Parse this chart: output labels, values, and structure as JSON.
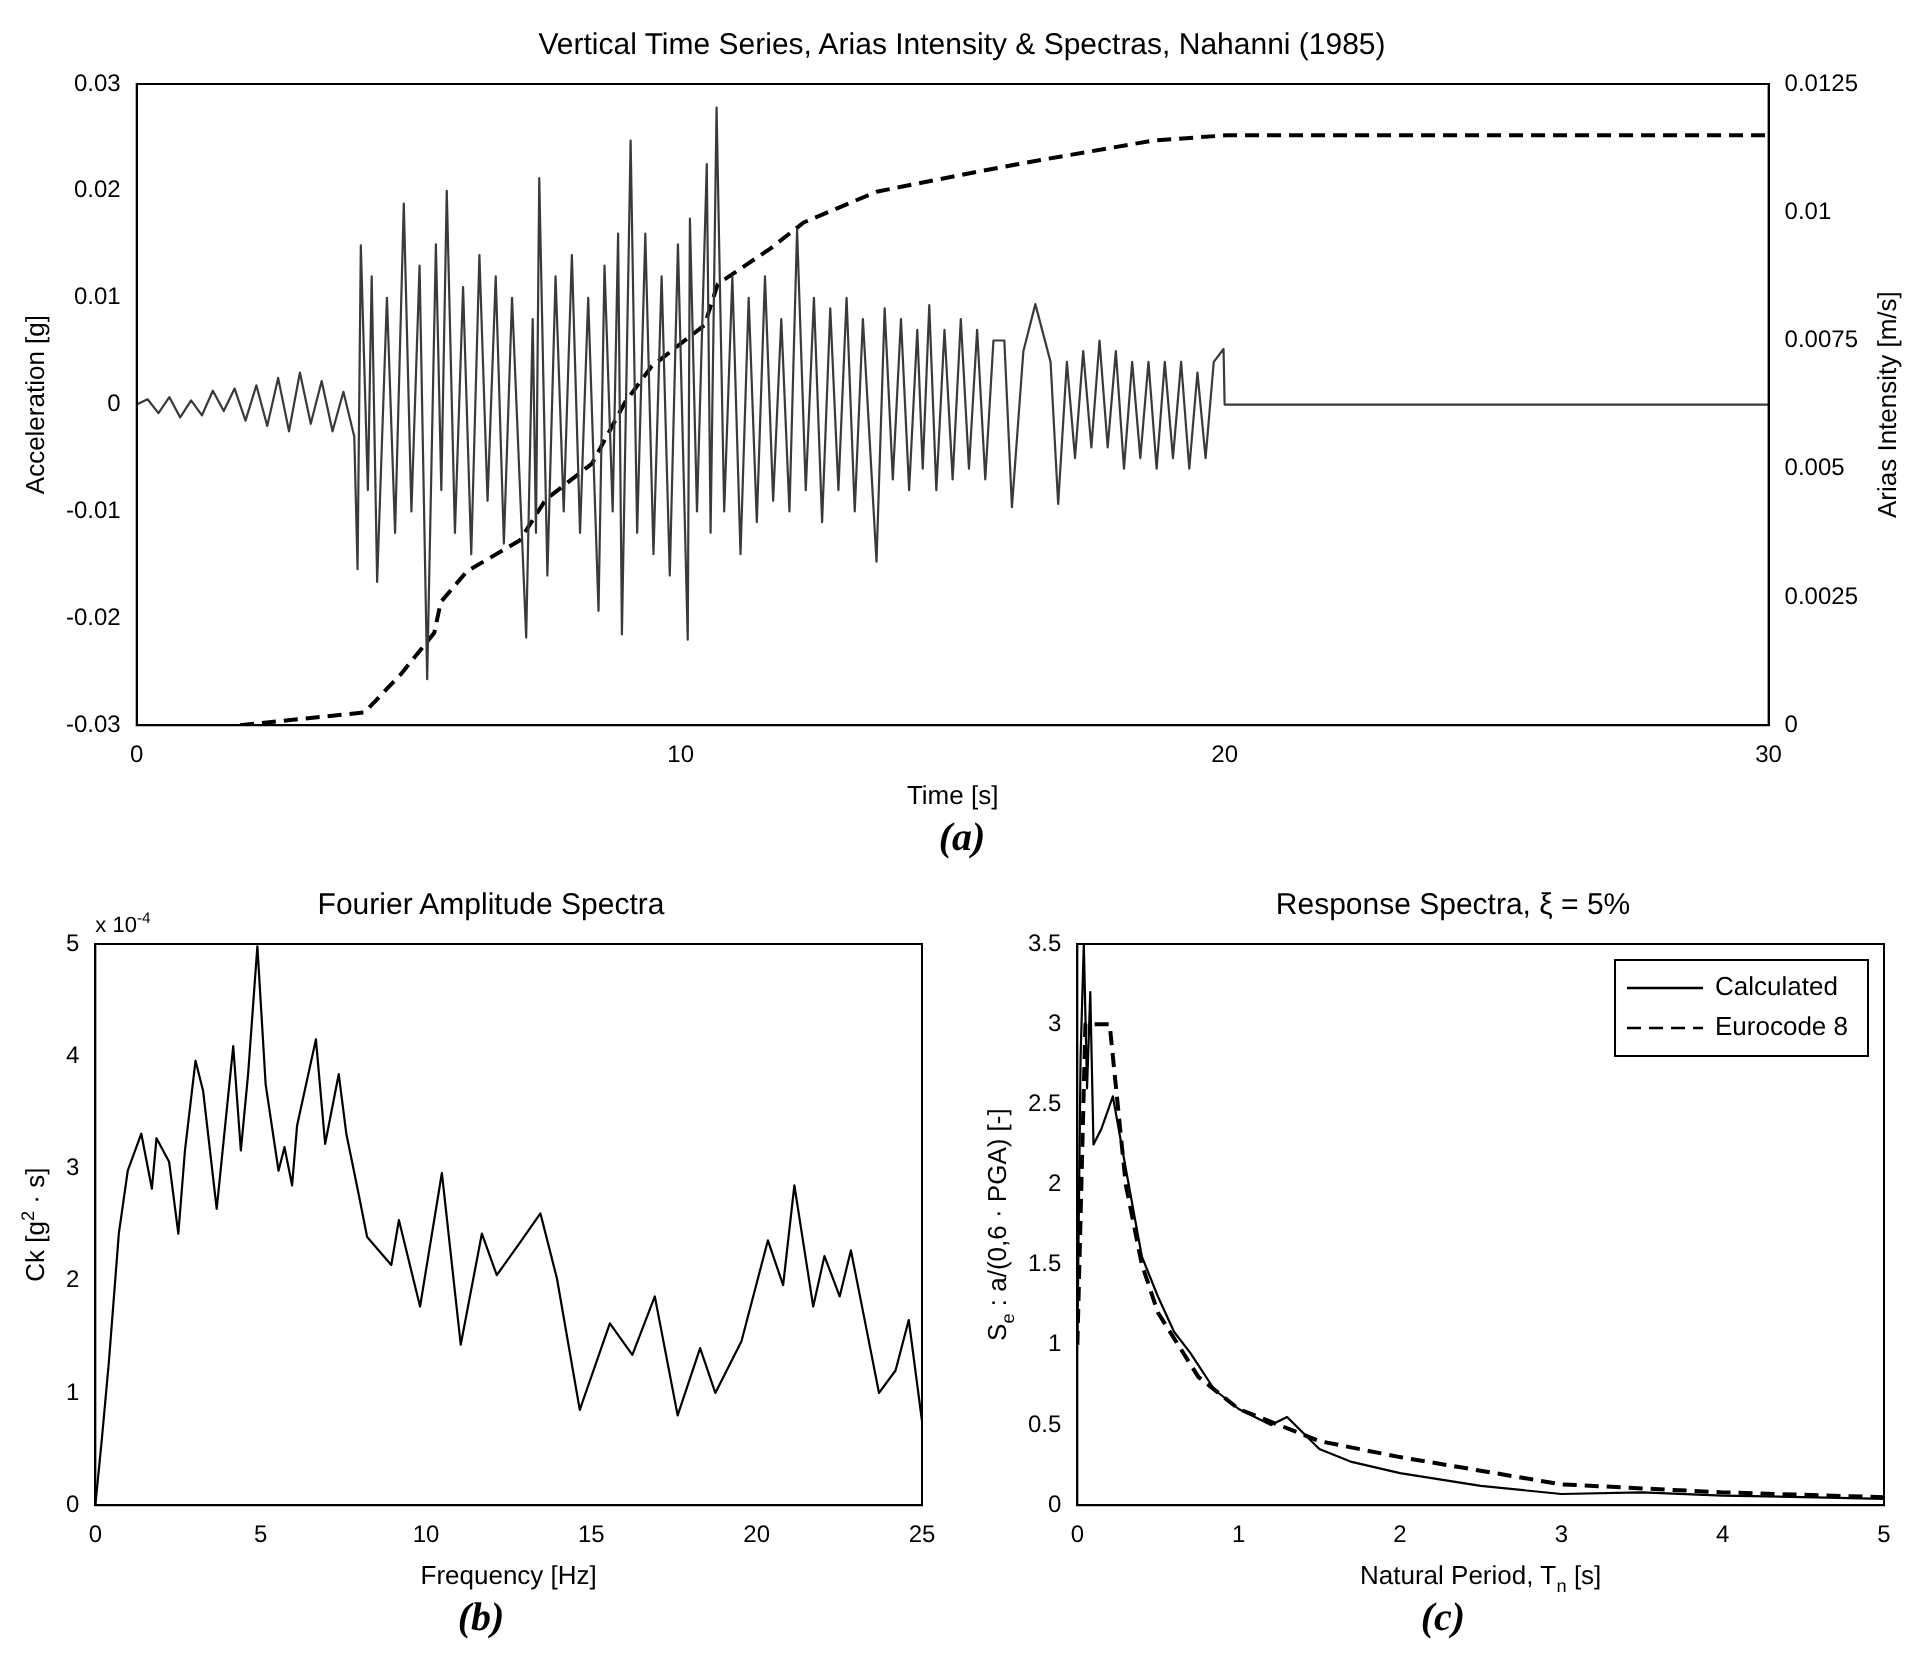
{
  "chart_data": [
    {
      "type": "line",
      "title": "Vertical Time Series, Arias Intensity & Spectras, Nahanni (1985)",
      "xlabel": "Time [s]",
      "ylabel": "Acceleration [g]",
      "y2label": "Arias Intensity [m/s]",
      "annotations": [
        "(a)"
      ],
      "marker": "none",
      "xlim": [
        0,
        30
      ],
      "xticks": [
        0,
        10,
        20,
        30
      ],
      "ylim": [
        -0.03,
        0.03
      ],
      "yticks": [
        -0.03,
        -0.02,
        -0.01,
        0,
        0.01,
        0.02,
        0.03
      ],
      "y2lim": [
        0,
        0.0125
      ],
      "y2ticks": [
        0,
        0.0025,
        0.005,
        0.0075,
        0.01,
        0.0125
      ],
      "series": [
        {
          "color": "#3a3a3a",
          "x": [
            0,
            0.2,
            0.4,
            0.6,
            0.8,
            1.0,
            1.2,
            1.4,
            1.6,
            1.8,
            2.0,
            2.2,
            2.4,
            2.6,
            2.8,
            3.0,
            3.2,
            3.4,
            3.6,
            3.8,
            4.0,
            4.06,
            4.12,
            4.25,
            4.32,
            4.42,
            4.6,
            4.75,
            4.91,
            5.05,
            5.2,
            5.34,
            5.5,
            5.6,
            5.7,
            5.85,
            6.0,
            6.15,
            6.3,
            6.45,
            6.6,
            6.75,
            6.9,
            7.16,
            7.28,
            7.34,
            7.4,
            7.55,
            7.7,
            7.85,
            8.0,
            8.15,
            8.3,
            8.49,
            8.6,
            8.75,
            8.85,
            8.92,
            9.08,
            9.2,
            9.35,
            9.5,
            9.65,
            9.8,
            9.95,
            10.13,
            10.17,
            10.3,
            10.48,
            10.55,
            10.66,
            10.8,
            10.95,
            11.1,
            11.25,
            11.4,
            11.55,
            11.7,
            11.85,
            12.0,
            12.14,
            12.3,
            12.45,
            12.6,
            12.75,
            12.9,
            13.05,
            13.2,
            13.35,
            13.6,
            13.75,
            13.9,
            14.05,
            14.2,
            14.35,
            14.45,
            14.57,
            14.7,
            14.85,
            15.0,
            15.15,
            15.3,
            15.45,
            15.6,
            15.75,
            15.95,
            16.09,
            16.3,
            16.52,
            16.8,
            16.94,
            17.1,
            17.25,
            17.4,
            17.55,
            17.7,
            17.85,
            18.0,
            18.15,
            18.3,
            18.45,
            18.6,
            18.75,
            18.9,
            19.05,
            19.2,
            19.35,
            19.5,
            19.65,
            19.8,
            19.98,
            20.0,
            30
          ],
          "values": [
            0,
            0.0005,
            -0.0008,
            0.0007,
            -0.0012,
            0.0004,
            -0.001,
            0.0013,
            -0.0006,
            0.0015,
            -0.0015,
            0.0018,
            -0.002,
            0.0025,
            -0.0025,
            0.003,
            -0.0018,
            0.0022,
            -0.0025,
            0.0012,
            -0.003,
            -0.0154,
            0.0149,
            -0.008,
            0.012,
            -0.0166,
            0.01,
            -0.012,
            0.0188,
            -0.01,
            0.013,
            -0.0257,
            0.015,
            -0.008,
            0.02,
            -0.012,
            0.011,
            -0.014,
            0.014,
            -0.009,
            0.012,
            -0.013,
            0.01,
            -0.0218,
            0.008,
            -0.012,
            0.0212,
            -0.016,
            0.012,
            -0.01,
            0.014,
            -0.012,
            0.01,
            -0.0193,
            0.013,
            -0.01,
            0.016,
            -0.0215,
            0.0247,
            -0.012,
            0.016,
            -0.014,
            0.012,
            -0.016,
            0.015,
            -0.022,
            0.0174,
            -0.01,
            0.0225,
            -0.012,
            0.0278,
            -0.01,
            0.012,
            -0.014,
            0.01,
            -0.011,
            0.012,
            -0.009,
            0.008,
            -0.01,
            0.0164,
            -0.008,
            0.01,
            -0.011,
            0.009,
            -0.008,
            0.01,
            -0.01,
            0.008,
            -0.0147,
            0.009,
            -0.007,
            0.008,
            -0.008,
            0.007,
            -0.006,
            0.0093,
            -0.008,
            0.007,
            -0.007,
            0.008,
            -0.006,
            0.007,
            -0.007,
            0.006,
            0.006,
            -0.0096,
            0.005,
            0.0094,
            0.004,
            -0.0093,
            0.004,
            -0.005,
            0.005,
            -0.004,
            0.006,
            -0.004,
            0.005,
            -0.006,
            0.004,
            -0.005,
            0.004,
            -0.006,
            0.004,
            -0.005,
            0.004,
            -0.006,
            0.003,
            -0.005,
            0.004,
            0.0052,
            0,
            0
          ]
        },
        {
          "color": "#000000",
          "axis": "y2",
          "line_style": "dashed",
          "x": [
            1.9,
            4.19,
            4.86,
            5.47,
            5.59,
            6.07,
            7.04,
            7.52,
            8.37,
            8.98,
            9.47,
            10.44,
            10.68,
            11.66,
            12.26,
            13.6,
            15.5,
            16.52,
            18.7,
            20.04,
            30
          ],
          "values": [
            0,
            0.00025,
            0.001,
            0.0018,
            0.0024,
            0.003,
            0.0036,
            0.0044,
            0.0051,
            0.0063,
            0.007,
            0.0078,
            0.0086,
            0.0093,
            0.0098,
            0.0104,
            0.0108,
            0.011,
            0.0114,
            0.0115,
            0.0115
          ]
        }
      ]
    },
    {
      "type": "line",
      "title": "Fourier Amplitude Spectra",
      "xlabel": "Frequency [Hz]",
      "ylabel": "Ck [g$^{2}$ · s]",
      "annotations": [
        "x 10$^{-4}$",
        "(b)"
      ],
      "marker": "none",
      "xlim": [
        0,
        25
      ],
      "xticks": [
        0,
        5,
        10,
        15,
        20,
        25
      ],
      "ylim": [
        0,
        5
      ],
      "yticks": [
        0,
        1,
        2,
        3,
        4,
        5
      ],
      "series": [
        {
          "color": "#000000",
          "x": [
            0,
            0.2,
            0.41,
            0.71,
            0.98,
            1.39,
            1.71,
            1.85,
            2.23,
            2.51,
            2.71,
            3.03,
            3.26,
            3.67,
            4.17,
            4.4,
            4.62,
            4.9,
            5.15,
            5.54,
            5.72,
            5.95,
            6.1,
            6.67,
            6.95,
            7.36,
            7.59,
            7.93,
            8.22,
            8.95,
            9.18,
            9.82,
            10.48,
            11.05,
            11.69,
            12.14,
            12.82,
            13.46,
            13.96,
            14.65,
            15.56,
            16.24,
            16.92,
            17.61,
            18.29,
            18.75,
            19.54,
            20.34,
            20.8,
            21.14,
            21.71,
            22.05,
            22.51,
            22.85,
            23.3,
            23.7,
            24.2,
            24.6,
            25
          ],
          "values": [
            0,
            0.6,
            1.28,
            2.42,
            2.98,
            3.31,
            2.82,
            3.27,
            3.06,
            2.42,
            3.16,
            3.96,
            3.69,
            2.64,
            4.09,
            3.16,
            3.84,
            4.98,
            3.75,
            2.98,
            3.19,
            2.85,
            3.38,
            4.15,
            3.22,
            3.84,
            3.31,
            2.82,
            2.39,
            2.14,
            2.54,
            1.77,
            2.96,
            1.43,
            2.42,
            2.05,
            2.33,
            2.6,
            2.02,
            0.85,
            1.62,
            1.34,
            1.86,
            0.8,
            1.4,
            1.0,
            1.46,
            2.36,
            1.96,
            2.85,
            1.77,
            2.22,
            1.86,
            2.27,
            1.6,
            1.0,
            1.2,
            1.65,
            0.75
          ]
        }
      ]
    },
    {
      "type": "line",
      "title": "Response Spectra, ξ = 5%",
      "xlabel": "Natural Period, T$_{n}$ [s]",
      "ylabel": "S$_{e}$ : a/(0,6 · PGA) [-]",
      "annotations": [
        "(c)"
      ],
      "marker": "none",
      "legend": "top right",
      "xlim": [
        0,
        5
      ],
      "xticks": [
        0,
        1,
        2,
        3,
        4,
        5
      ],
      "ylim": [
        0,
        3.5
      ],
      "yticks": [
        0,
        0.5,
        1,
        1.5,
        2,
        2.5,
        3,
        3.5
      ],
      "series": [
        {
          "name": "Calculated",
          "color": "#000000",
          "x": [
            0,
            0.02,
            0.04,
            0.06,
            0.08,
            0.1,
            0.15,
            0.22,
            0.3,
            0.4,
            0.5,
            0.6,
            0.7,
            0.85,
            1.0,
            1.2,
            1.3,
            1.5,
            1.7,
            2.0,
            2.5,
            3.0,
            3.5,
            4.0,
            4.5,
            5.0
          ],
          "values": [
            1.0,
            2.8,
            3.5,
            2.6,
            3.2,
            2.25,
            2.35,
            2.55,
            2.1,
            1.55,
            1.3,
            1.08,
            0.95,
            0.72,
            0.6,
            0.5,
            0.55,
            0.35,
            0.27,
            0.2,
            0.12,
            0.07,
            0.08,
            0.06,
            0.05,
            0.04
          ]
        },
        {
          "name": "Eurocode 8",
          "color": "#000000",
          "line_style": "dashed",
          "x": [
            0,
            0.05,
            0.2,
            0.3,
            0.4,
            0.5,
            0.75,
            1.0,
            1.5,
            2.0,
            3.0,
            4.0,
            5.0
          ],
          "values": [
            1.0,
            3.0,
            3.0,
            2.0,
            1.5,
            1.2,
            0.8,
            0.6,
            0.4,
            0.3,
            0.13,
            0.08,
            0.05
          ]
        }
      ]
    }
  ]
}
